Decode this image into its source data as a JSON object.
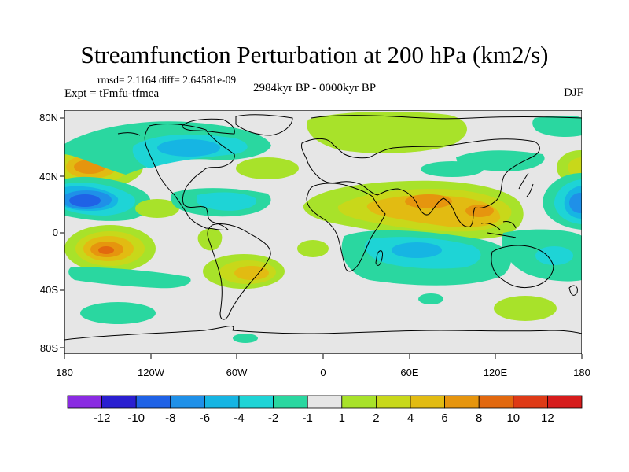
{
  "title": "Streamfunction Perturbation at 200 hPa (km2/s)",
  "stats_line": "rmsd= 2.1164 diff= 2.64581e-09",
  "experiment": "Expt = tFmfu-tfmea",
  "period": "2984kyr BP - 0000kyr BP",
  "season": "DJF",
  "axes": {
    "lat_labels": [
      "80N",
      "40N",
      "0",
      "40S",
      "80S"
    ],
    "lon_labels": [
      "180",
      "120W",
      "60W",
      "0",
      "60E",
      "120E",
      "180"
    ]
  },
  "colorbar": {
    "labels": [
      "-12",
      "-10",
      "-8",
      "-6",
      "-4",
      "-2",
      "-1",
      "1",
      "2",
      "4",
      "6",
      "8",
      "10",
      "12"
    ],
    "colors": [
      "#8a2be2",
      "#2a1fd0",
      "#1f62e6",
      "#1f90e8",
      "#16b5e3",
      "#1ed4d6",
      "#2ad7a0",
      "#e6e6e6",
      "#a8e22a",
      "#c8d81a",
      "#e2bb12",
      "#e6950e",
      "#e2680e",
      "#de3a16",
      "#d61c1c"
    ]
  },
  "colors": {
    "background_field": "#e6e6e6",
    "land_outline": "#000000"
  }
}
